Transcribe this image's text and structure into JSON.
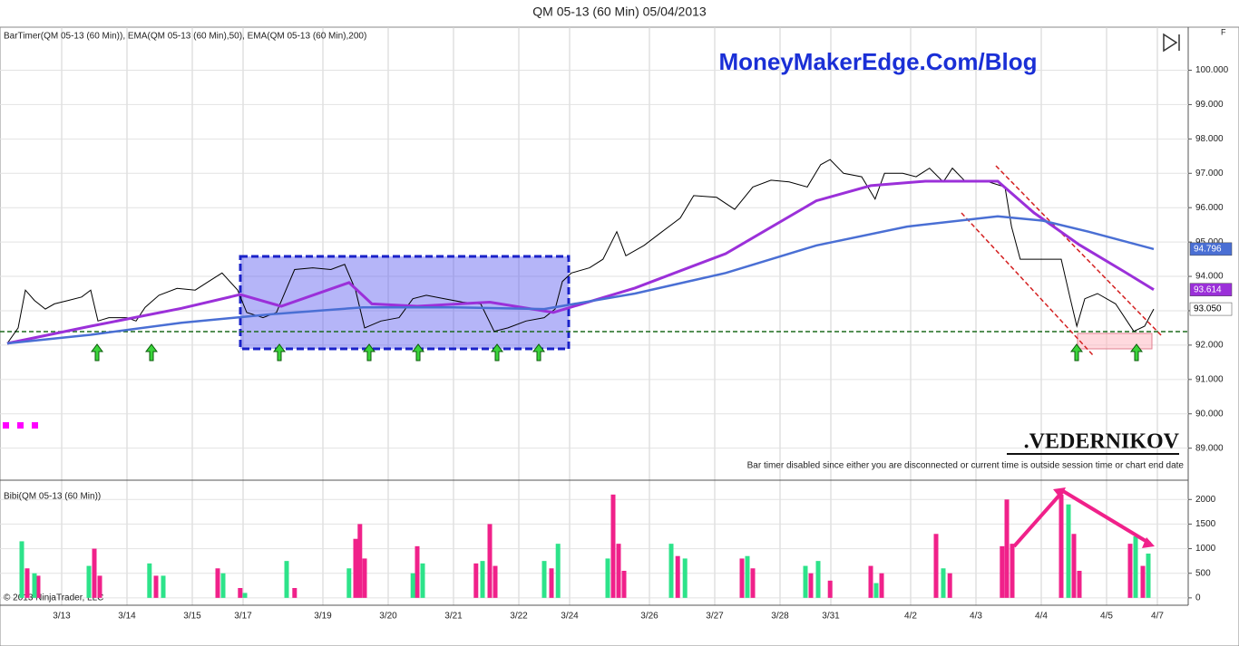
{
  "chart_data": [
    {
      "type": "line",
      "title": "QM 05-13 (60 Min)  05/04/2013",
      "indicator_label": "BarTimer(QM 05-13 (60 Min)), EMA(QM 05-13 (60 Min),50), EMA(QM 05-13 (60 Min),200)",
      "watermark": "MoneyMakerEdge.Com/Blog",
      "signature": ".VEDERNIKOV",
      "notice": "Bar timer disabled since either you are disconnected or current time is outside session time or chart end date",
      "corner_label": "F",
      "xlim": [
        -0.5,
        163.25
      ],
      "ylim": [
        88.2,
        101.2
      ],
      "yticks": [
        {
          "value": 89,
          "label": "89.000"
        },
        {
          "value": 90,
          "label": "90.000"
        },
        {
          "value": 91,
          "label": "91.000"
        },
        {
          "value": 92,
          "label": "92.000"
        },
        {
          "value": 93,
          "label": "93.000"
        },
        {
          "value": 94,
          "label": "94.000"
        },
        {
          "value": 95,
          "label": "95.000"
        },
        {
          "value": 96,
          "label": "96.000"
        },
        {
          "value": 97,
          "label": "97.000"
        },
        {
          "value": 98,
          "label": "98.000"
        },
        {
          "value": 99,
          "label": "99.000"
        },
        {
          "value": 100,
          "label": "100.000"
        }
      ],
      "grid": true,
      "series": [
        {
          "color": "#000000",
          "width": 1,
          "x": [
            0.5,
            2,
            3,
            4.25,
            5.75,
            7,
            8.9,
            10.75,
            12,
            13,
            14.5,
            17,
            18.25,
            19.5,
            21.4,
            23.9,
            26.4,
            28.25,
            30.1,
            32.25,
            33.5,
            35.75,
            37.6,
            38.9,
            40.1,
            42.6,
            45.1,
            47,
            48.5,
            49.75,
            52,
            54.5,
            56.4,
            58.25,
            60.75,
            63.25,
            65.75,
            67.6,
            69.5,
            72,
            74.5,
            76,
            77,
            78.25,
            80.75,
            82.6,
            84.5,
            85.75,
            88.25,
            90.75,
            93.25,
            95.1,
            98.25,
            100.75,
            103.25,
            105.75,
            108.25,
            110.75,
            112.6,
            113.9,
            115.75,
            118.25,
            120.1,
            121.4,
            123.9,
            125.75,
            127.6,
            129.5,
            130.75,
            132.6,
            135.75,
            138,
            138.9,
            140.1,
            142.6,
            145.75,
            147,
            147.9,
            149,
            150.75,
            153.25,
            155.75,
            157.25,
            158.5
          ],
          "values": [
            92.05,
            92.5,
            93.6,
            93.3,
            93.05,
            93.2,
            93.3,
            93.4,
            93.6,
            92.7,
            92.8,
            92.8,
            92.7,
            93.1,
            93.45,
            93.65,
            93.6,
            93.85,
            94.1,
            93.6,
            92.95,
            92.8,
            92.95,
            93.6,
            94.2,
            94.25,
            94.2,
            94.35,
            93.6,
            92.5,
            92.7,
            92.8,
            93.35,
            93.45,
            93.35,
            93.25,
            93.2,
            92.4,
            92.5,
            92.7,
            92.8,
            93.05,
            93.85,
            94.1,
            94.25,
            94.5,
            95.3,
            94.6,
            94.9,
            95.3,
            95.7,
            96.35,
            96.3,
            95.95,
            96.6,
            96.8,
            96.75,
            96.6,
            97.25,
            97.4,
            97.0,
            96.9,
            96.25,
            97.0,
            97.0,
            96.9,
            97.15,
            96.75,
            97.15,
            96.75,
            96.75,
            96.6,
            95.45,
            94.5,
            94.5,
            94.5,
            93.35,
            92.55,
            93.35,
            93.5,
            93.2,
            92.4,
            92.55,
            93.05
          ]
        },
        {
          "color": "#9b30d9",
          "width": 3,
          "x": [
            0.5,
            12,
            24.5,
            32.6,
            38.25,
            47.6,
            50.75,
            57,
            67,
            75.75,
            87,
            99.5,
            112,
            119.5,
            127,
            137,
            142,
            148.25,
            154.5,
            158.5
          ],
          "values": [
            92.05,
            92.55,
            93.07,
            93.47,
            93.13,
            93.82,
            93.2,
            93.13,
            93.25,
            92.95,
            93.66,
            94.66,
            96.2,
            96.64,
            96.77,
            96.77,
            95.85,
            94.92,
            94.13,
            93.614
          ]
        },
        {
          "color": "#4a6fd4",
          "width": 2.5,
          "x": [
            0.5,
            12,
            24.5,
            37,
            49.5,
            62,
            74.5,
            87,
            99.5,
            112,
            124.5,
            137,
            143.25,
            149.5,
            158.5
          ],
          "values": [
            92.05,
            92.3,
            92.65,
            92.9,
            93.1,
            93.1,
            93.05,
            93.5,
            94.1,
            94.9,
            95.45,
            95.75,
            95.62,
            95.3,
            94.796
          ]
        }
      ],
      "price_markers": [
        {
          "value": 94.796,
          "label": "94.796",
          "color": "#4a6fd4"
        },
        {
          "value": 93.614,
          "label": "93.614",
          "color": "#9b30d9"
        },
        {
          "value": 93.05,
          "label": "93.050",
          "color": "#ffffff"
        }
      ]
    },
    {
      "type": "bar",
      "title": "Bibi(QM 05-13 (60 Min))",
      "copyright": "© 2013 NinjaTrader, LLC",
      "xlim": [
        -0.5,
        163.25
      ],
      "xticks": [
        {
          "value": 8,
          "label": "3/13"
        },
        {
          "value": 17,
          "label": "3/14"
        },
        {
          "value": 26,
          "label": "3/15"
        },
        {
          "value": 33,
          "label": "3/17"
        },
        {
          "value": 44,
          "label": "3/19"
        },
        {
          "value": 53,
          "label": "3/20"
        },
        {
          "value": 62,
          "label": "3/21"
        },
        {
          "value": 71,
          "label": "3/22"
        },
        {
          "value": 78,
          "label": "3/24"
        },
        {
          "value": 89,
          "label": "3/26"
        },
        {
          "value": 98,
          "label": "3/27"
        },
        {
          "value": 107,
          "label": "3/28"
        },
        {
          "value": 114,
          "label": "3/31"
        },
        {
          "value": 125,
          "label": "4/2"
        },
        {
          "value": 134,
          "label": "4/3"
        },
        {
          "value": 143,
          "label": "4/4"
        },
        {
          "value": 152,
          "label": "4/5"
        },
        {
          "value": 159,
          "label": "4/7"
        }
      ],
      "ylim": [
        -150,
        2300
      ],
      "yticks": [
        0,
        500,
        1000,
        1500,
        2000
      ],
      "series": [
        {
          "color": "#f0218a",
          "x": [
            3.25,
            4.75,
            12.5,
            13.25,
            21,
            29.5,
            32.6,
            40.1,
            48.5,
            49.1,
            49.75,
            57,
            65.1,
            67,
            67.75,
            75.5,
            84,
            84.75,
            85.5,
            92.9,
            101.75,
            103.25,
            111.25,
            113.9,
            119.5,
            121,
            128.5,
            130.4,
            137.6,
            138.25,
            139,
            145.75,
            147.5,
            148.25,
            155.25,
            157
          ],
          "values": [
            600,
            450,
            1000,
            450,
            450,
            600,
            200,
            200,
            1200,
            1500,
            800,
            1050,
            700,
            1500,
            650,
            600,
            2100,
            1100,
            550,
            850,
            800,
            600,
            500,
            350,
            650,
            500,
            1300,
            500,
            1050,
            2000,
            1100,
            2100,
            1300,
            550,
            1100,
            650
          ]
        },
        {
          "color": "#2de38a",
          "x": [
            2.5,
            4.25,
            11.75,
            20.1,
            22,
            30.25,
            33.25,
            39,
            47.6,
            56.4,
            57.75,
            66,
            74.5,
            76.4,
            83.25,
            92,
            93.9,
            102.5,
            110.5,
            112.25,
            120.25,
            129.5,
            146.75,
            156,
            157.75
          ],
          "values": [
            1150,
            500,
            650,
            700,
            450,
            500,
            100,
            750,
            600,
            500,
            700,
            750,
            750,
            1100,
            800,
            1100,
            800,
            850,
            650,
            750,
            300,
            600,
            1900,
            1250,
            900
          ]
        }
      ]
    }
  ]
}
